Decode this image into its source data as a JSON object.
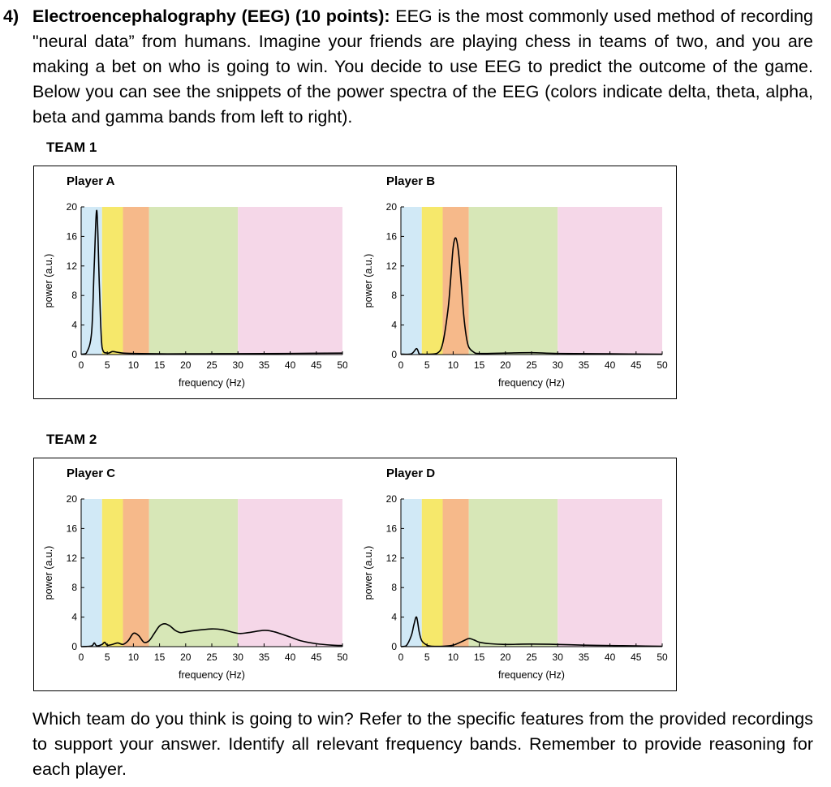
{
  "question": {
    "number": "4)",
    "title": "Electroencephalography (EEG) (10 points):",
    "text": " EEG is the most commonly used method of recording \"neural data” from humans. Imagine your friends are playing chess in teams of two, and you are making a bet on who is going to win. You decide to use EEG to predict the outcome of the game. Below you can see the snippets of the power spectra of the EEG (colors indicate delta, theta, alpha, beta and gamma bands from left to right)."
  },
  "teams": [
    {
      "label": "TEAM 1"
    },
    {
      "label": "TEAM 2"
    }
  ],
  "footer": "Which team do you think is going to win? Refer to the specific features from the provided recordings to support your answer. Identify all relevant frequency bands. Remember to provide reasoning for each player.",
  "band_colors": [
    "#d1e9f6",
    "#f6e86b",
    "#f6b98a",
    "#d7e7b7",
    "#f5d7e8"
  ],
  "bands": [
    [
      0,
      4
    ],
    [
      4,
      8
    ],
    [
      8,
      13
    ],
    [
      13,
      30
    ],
    [
      30,
      50
    ]
  ],
  "chart_data": [
    {
      "type": "line",
      "title": "Player A",
      "xlabel": "frequency (Hz)",
      "ylabel": "power (a.u.)",
      "xlim": [
        0,
        50
      ],
      "ylim": [
        0,
        20
      ],
      "xticks": [
        0,
        5,
        10,
        15,
        20,
        25,
        30,
        35,
        40,
        45,
        50
      ],
      "yticks": [
        0,
        4,
        8,
        12,
        16,
        20
      ],
      "x": [
        0,
        1,
        2,
        2.5,
        3,
        3.5,
        4,
        5,
        6,
        7,
        8,
        10,
        15,
        20,
        30,
        40,
        50
      ],
      "y": [
        0.05,
        0.2,
        3,
        12,
        19.5,
        9,
        1,
        0.2,
        0.4,
        0.3,
        0.2,
        0.15,
        0.1,
        0.1,
        0.12,
        0.15,
        0.2
      ]
    },
    {
      "type": "line",
      "title": "Player B",
      "xlabel": "frequency (Hz)",
      "ylabel": "power (a.u.)",
      "xlim": [
        0,
        50
      ],
      "ylim": [
        0,
        20
      ],
      "xticks": [
        0,
        5,
        10,
        15,
        20,
        25,
        30,
        35,
        40,
        45,
        50
      ],
      "yticks": [
        0,
        4,
        8,
        12,
        16,
        20
      ],
      "x": [
        0,
        2,
        3,
        3.5,
        4,
        5,
        7,
        8,
        9,
        9.5,
        10,
        10.5,
        11,
        11.5,
        12,
        12.5,
        13,
        14,
        15,
        20,
        25,
        30,
        40,
        50
      ],
      "y": [
        0.05,
        0.1,
        0.8,
        0.1,
        0.05,
        0.05,
        0.2,
        1.5,
        6,
        10,
        14.5,
        15.8,
        14,
        10,
        5.5,
        2.5,
        1,
        0.3,
        0.15,
        0.2,
        0.25,
        0.15,
        0.1,
        0.05
      ]
    },
    {
      "type": "line",
      "title": "Player C",
      "xlabel": "frequency (Hz)",
      "ylabel": "power (a.u.)",
      "xlim": [
        0,
        50
      ],
      "ylim": [
        0,
        20
      ],
      "xticks": [
        0,
        5,
        10,
        15,
        20,
        25,
        30,
        35,
        40,
        45,
        50
      ],
      "yticks": [
        0,
        4,
        8,
        12,
        16,
        20
      ],
      "x": [
        0,
        2,
        2.5,
        3,
        4,
        4.5,
        5,
        6,
        7,
        8,
        9,
        10,
        11,
        12,
        13,
        14,
        15,
        16,
        17,
        18,
        19,
        20,
        22,
        25,
        27,
        30,
        32,
        35,
        37,
        40,
        42,
        45,
        48,
        50
      ],
      "y": [
        0,
        0.1,
        0.5,
        0.1,
        0.3,
        0.6,
        0.2,
        0.3,
        0.5,
        0.3,
        0.8,
        1.8,
        1.5,
        0.6,
        0.8,
        1.8,
        2.8,
        3.1,
        2.8,
        2.2,
        1.9,
        2.0,
        2.2,
        2.4,
        2.3,
        1.8,
        1.9,
        2.2,
        2.0,
        1.3,
        0.8,
        0.4,
        0.2,
        0.15
      ]
    },
    {
      "type": "line",
      "title": "Player D",
      "xlabel": "frequency (Hz)",
      "ylabel": "power (a.u.)",
      "xlim": [
        0,
        50
      ],
      "ylim": [
        0,
        20
      ],
      "xticks": [
        0,
        5,
        10,
        15,
        20,
        25,
        30,
        35,
        40,
        45,
        50
      ],
      "yticks": [
        0,
        4,
        8,
        12,
        16,
        20
      ],
      "x": [
        0,
        1,
        2,
        2.5,
        3,
        3.5,
        4,
        5,
        6,
        8,
        10,
        12,
        13,
        14,
        15,
        17,
        20,
        25,
        30,
        35,
        40,
        45,
        50
      ],
      "y": [
        0,
        0.1,
        1.5,
        3.0,
        4.0,
        2.0,
        0.8,
        0.2,
        0.05,
        0.05,
        0.2,
        0.8,
        1.1,
        0.9,
        0.6,
        0.4,
        0.3,
        0.35,
        0.3,
        0.2,
        0.15,
        0.1,
        0.05
      ]
    }
  ]
}
